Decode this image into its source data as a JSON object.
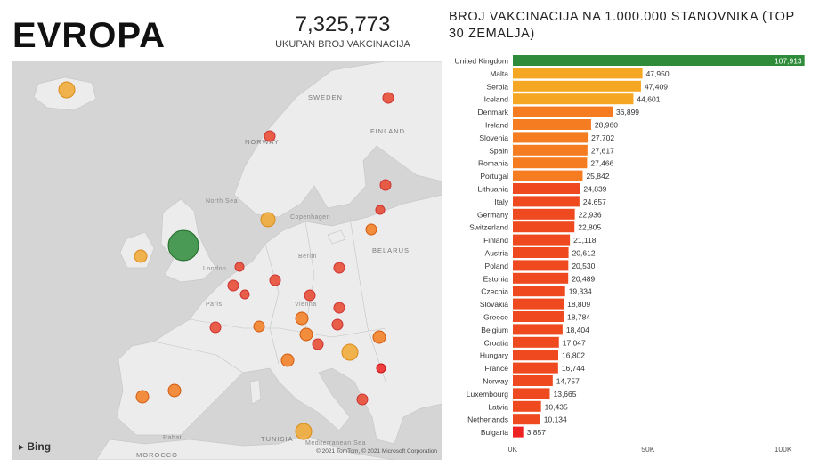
{
  "header": {
    "title": "EVROPA",
    "kpi_value": "7,325,773",
    "kpi_label": "UKUPAN BROJ VAKCINACIJA"
  },
  "map": {
    "labels": {
      "sweden": "SWEDEN",
      "finland": "FINLAND",
      "norway": "NORWAY",
      "north_sea": "North Sea",
      "copenhagen": "Copenhagen",
      "belarus": "BELARUS",
      "london": "London",
      "berlin": "Berlin",
      "paris": "Paris",
      "vienna": "Vienna",
      "tunisia": "TUNISIA",
      "morocco": "MOROCCO",
      "rabat": "Rabat",
      "medit": "Mediterranean Sea"
    },
    "brand": "Bing",
    "copyright": "© 2021 TomTom, © 2021 Microsoft Corporation",
    "colors": {
      "water": "#d5d5d5",
      "land": "#ececec",
      "high": "#2e8b3a",
      "mid": "#f0a830",
      "low": "#e8452c"
    }
  },
  "chart_data": {
    "type": "bar",
    "orientation": "horizontal",
    "title": "BROJ VAKCINACIJA NA 1.000.000 STANOVNIKA (TOP 30 ZEMALJA)",
    "categories": [
      "United Kingdom",
      "Malta",
      "Serbia",
      "Iceland",
      "Denmark",
      "Ireland",
      "Slovenia",
      "Spain",
      "Romania",
      "Portugal",
      "Lithuania",
      "Italy",
      "Germany",
      "Switzerland",
      "Finland",
      "Austria",
      "Poland",
      "Estonia",
      "Czechia",
      "Slovakia",
      "Greece",
      "Belgium",
      "Croatia",
      "Hungary",
      "France",
      "Norway",
      "Luxembourg",
      "Latvia",
      "Netherlands",
      "Bulgaria"
    ],
    "values": [
      107913,
      47950,
      47409,
      44601,
      36899,
      28960,
      27702,
      27617,
      27466,
      25842,
      24839,
      24657,
      22936,
      22805,
      21118,
      20612,
      20530,
      20489,
      19334,
      18809,
      18784,
      18404,
      17047,
      16802,
      16744,
      14757,
      13665,
      10435,
      10134,
      3857
    ],
    "value_labels": [
      "107,913",
      "47,950",
      "47,409",
      "44,601",
      "36,899",
      "28,960",
      "27,702",
      "27,617",
      "27,466",
      "25,842",
      "24,839",
      "24,657",
      "22,936",
      "22,805",
      "21,118",
      "20,612",
      "20,530",
      "20,489",
      "19,334",
      "18,809",
      "18,784",
      "18,404",
      "17,047",
      "16,802",
      "16,744",
      "14,757",
      "13,665",
      "10,435",
      "10,134",
      "3,857"
    ],
    "xlim": [
      0,
      110000
    ],
    "xticks": [
      0,
      50000,
      100000
    ],
    "xtick_labels": [
      "0K",
      "50K",
      "100K"
    ],
    "colors": {
      "top": "#2e8b3a",
      "high": "#f5a623",
      "mid": "#f57c20",
      "low": "#ef4a1f",
      "lowest": "#ee2222"
    }
  }
}
